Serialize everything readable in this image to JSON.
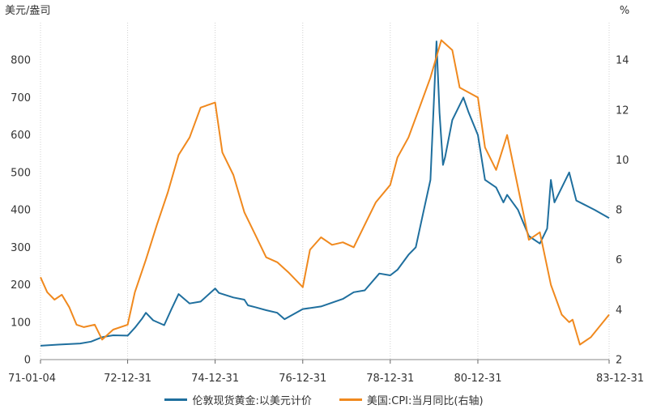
{
  "chart_data": {
    "type": "line",
    "title": "",
    "left_axis": {
      "unit": "美元/盎司",
      "min": 0,
      "max": 900,
      "ticks": [
        0,
        100,
        200,
        300,
        400,
        500,
        600,
        700,
        800
      ]
    },
    "right_axis": {
      "unit": "%",
      "min": 2,
      "max": 15.5,
      "ticks": [
        2,
        4,
        6,
        8,
        10,
        12,
        14
      ]
    },
    "x_axis": {
      "start": "1971-01-04",
      "end": "1983-12-31",
      "tick_labels": [
        {
          "date": "1971-01-04",
          "label": "71-01-04"
        },
        {
          "date": "1972-12-31",
          "label": "72-12-31"
        },
        {
          "date": "1974-12-31",
          "label": "74-12-31"
        },
        {
          "date": "1976-12-31",
          "label": "76-12-31"
        },
        {
          "date": "1978-12-31",
          "label": "78-12-31"
        },
        {
          "date": "1980-12-31",
          "label": "80-12-31"
        },
        {
          "date": "1983-12-31",
          "label": "83-12-31"
        }
      ]
    },
    "grid": "vertical dashed",
    "legend_position": "bottom",
    "series": [
      {
        "name": "伦敦现货黄金:以美元计价",
        "axis": "left",
        "color": "#1f6f9e",
        "points": [
          [
            "1971-01-04",
            37
          ],
          [
            "1971-06-01",
            40
          ],
          [
            "1971-12-01",
            43
          ],
          [
            "1972-03-01",
            48
          ],
          [
            "1972-06-01",
            60
          ],
          [
            "1972-09-01",
            65
          ],
          [
            "1972-12-31",
            64
          ],
          [
            "1973-03-01",
            85
          ],
          [
            "1973-05-01",
            110
          ],
          [
            "1973-06-01",
            125
          ],
          [
            "1973-08-01",
            105
          ],
          [
            "1973-11-01",
            92
          ],
          [
            "1974-01-01",
            135
          ],
          [
            "1974-03-01",
            175
          ],
          [
            "1974-06-01",
            150
          ],
          [
            "1974-09-01",
            155
          ],
          [
            "1974-12-31",
            190
          ],
          [
            "1975-02-01",
            178
          ],
          [
            "1975-06-01",
            166
          ],
          [
            "1975-09-01",
            160
          ],
          [
            "1975-10-01",
            145
          ],
          [
            "1975-12-01",
            140
          ],
          [
            "1976-03-01",
            132
          ],
          [
            "1976-06-01",
            125
          ],
          [
            "1976-08-01",
            108
          ],
          [
            "1976-12-31",
            135
          ],
          [
            "1977-06-01",
            142
          ],
          [
            "1977-12-01",
            162
          ],
          [
            "1978-03-01",
            180
          ],
          [
            "1978-06-01",
            185
          ],
          [
            "1978-10-01",
            230
          ],
          [
            "1978-12-31",
            225
          ],
          [
            "1979-03-01",
            240
          ],
          [
            "1979-06-01",
            280
          ],
          [
            "1979-08-01",
            300
          ],
          [
            "1979-10-01",
            390
          ],
          [
            "1979-12-01",
            480
          ],
          [
            "1980-01-21",
            850
          ],
          [
            "1980-02-15",
            660
          ],
          [
            "1980-03-15",
            520
          ],
          [
            "1980-04-01",
            540
          ],
          [
            "1980-06-01",
            640
          ],
          [
            "1980-09-01",
            700
          ],
          [
            "1980-10-15",
            660
          ],
          [
            "1980-12-31",
            600
          ],
          [
            "1981-03-01",
            480
          ],
          [
            "1981-06-01",
            460
          ],
          [
            "1981-08-01",
            420
          ],
          [
            "1981-09-01",
            440
          ],
          [
            "1981-12-01",
            400
          ],
          [
            "1982-03-01",
            330
          ],
          [
            "1982-06-01",
            310
          ],
          [
            "1982-08-01",
            350
          ],
          [
            "1982-09-01",
            480
          ],
          [
            "1982-10-01",
            420
          ],
          [
            "1983-02-01",
            500
          ],
          [
            "1983-04-01",
            425
          ],
          [
            "1983-06-01",
            415
          ],
          [
            "1983-09-01",
            400
          ],
          [
            "1983-12-31",
            378
          ]
        ]
      },
      {
        "name": "美国:CPI:当月同比(右轴)",
        "axis": "right",
        "color": "#f0891e",
        "points": [
          [
            "1971-01-04",
            5.3
          ],
          [
            "1971-03-01",
            4.7
          ],
          [
            "1971-05-01",
            4.4
          ],
          [
            "1971-07-01",
            4.6
          ],
          [
            "1971-09-01",
            4.1
          ],
          [
            "1971-11-01",
            3.4
          ],
          [
            "1972-01-01",
            3.3
          ],
          [
            "1972-04-01",
            3.4
          ],
          [
            "1972-06-01",
            2.8
          ],
          [
            "1972-09-01",
            3.2
          ],
          [
            "1972-12-31",
            3.4
          ],
          [
            "1973-03-01",
            4.7
          ],
          [
            "1973-06-01",
            6.0
          ],
          [
            "1973-09-01",
            7.4
          ],
          [
            "1973-12-01",
            8.7
          ],
          [
            "1974-03-01",
            10.2
          ],
          [
            "1974-06-01",
            10.9
          ],
          [
            "1974-09-01",
            12.1
          ],
          [
            "1974-12-31",
            12.3
          ],
          [
            "1975-03-01",
            10.3
          ],
          [
            "1975-06-01",
            9.4
          ],
          [
            "1975-09-01",
            7.9
          ],
          [
            "1975-12-01",
            7.0
          ],
          [
            "1976-03-01",
            6.1
          ],
          [
            "1976-06-01",
            5.9
          ],
          [
            "1976-09-01",
            5.5
          ],
          [
            "1976-12-31",
            4.9
          ],
          [
            "1977-03-01",
            6.4
          ],
          [
            "1977-06-01",
            6.9
          ],
          [
            "1977-09-01",
            6.6
          ],
          [
            "1977-12-01",
            6.7
          ],
          [
            "1978-03-01",
            6.5
          ],
          [
            "1978-06-01",
            7.4
          ],
          [
            "1978-09-01",
            8.3
          ],
          [
            "1978-12-31",
            9.0
          ],
          [
            "1979-03-01",
            10.1
          ],
          [
            "1979-06-01",
            10.9
          ],
          [
            "1979-09-01",
            12.1
          ],
          [
            "1979-12-01",
            13.3
          ],
          [
            "1980-03-01",
            14.8
          ],
          [
            "1980-06-01",
            14.4
          ],
          [
            "1980-08-01",
            12.9
          ],
          [
            "1980-12-31",
            12.5
          ],
          [
            "1981-03-01",
            10.5
          ],
          [
            "1981-06-01",
            9.6
          ],
          [
            "1981-09-01",
            11.0
          ],
          [
            "1981-12-01",
            8.9
          ],
          [
            "1982-03-01",
            6.8
          ],
          [
            "1982-06-01",
            7.1
          ],
          [
            "1982-09-01",
            5.0
          ],
          [
            "1982-12-01",
            3.8
          ],
          [
            "1983-02-01",
            3.5
          ],
          [
            "1983-03-01",
            3.6
          ],
          [
            "1983-05-01",
            2.6
          ],
          [
            "1983-08-01",
            2.9
          ],
          [
            "1983-12-31",
            3.8
          ]
        ]
      }
    ]
  }
}
